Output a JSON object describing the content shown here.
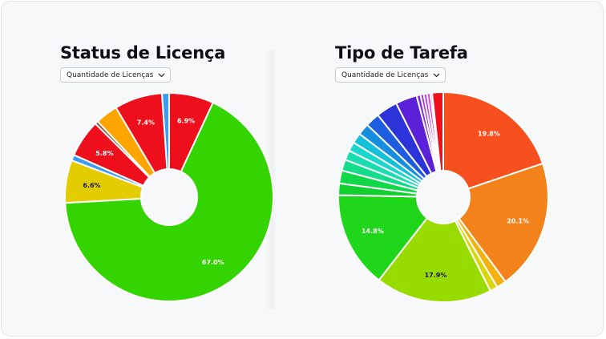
{
  "colors": {
    "background": "#f7f8fa",
    "title": "#0d0f14"
  },
  "panels": [
    {
      "title": "Status de Licença",
      "dropdown": {
        "selected": "Quantidade de Licenças",
        "icon": "chevron-down-icon"
      }
    },
    {
      "title": "Tipo de Tarefa",
      "dropdown": {
        "selected": "Quantidade de Licenças",
        "icon": "chevron-down-icon"
      }
    }
  ],
  "chart_data": [
    {
      "type": "pie",
      "style": "donut",
      "title": "Status de Licença",
      "start": "top",
      "slices": [
        {
          "value": 6.9,
          "label": "6.9%",
          "color": "#ee0f1d"
        },
        {
          "value": 67.0,
          "label": "67.0%",
          "color": "#34d400"
        },
        {
          "value": 6.6,
          "label": "6.6%",
          "color": "#e3cd00"
        },
        {
          "value": 0.9,
          "label": "",
          "color": "#3b9cf1"
        },
        {
          "value": 5.8,
          "label": "5.8%",
          "color": "#ee0f1d"
        },
        {
          "value": 0.5,
          "label": "",
          "color": "#a0522d"
        },
        {
          "value": 3.5,
          "label": "",
          "color": "#ffa500"
        },
        {
          "value": 7.4,
          "label": "7.4%",
          "color": "#ee0f1d"
        },
        {
          "value": 1.1,
          "label": "",
          "color": "#3b9cf1"
        }
      ]
    },
    {
      "type": "pie",
      "style": "donut",
      "title": "Tipo de Tarefa",
      "start": "top",
      "slices": [
        {
          "value": 19.8,
          "label": "19.8%",
          "color": "#f84f1f"
        },
        {
          "value": 20.1,
          "label": "20.1%",
          "color": "#f4821a"
        },
        {
          "value": 1.5,
          "label": "",
          "color": "#f2b20f"
        },
        {
          "value": 1.2,
          "label": "",
          "color": "#dbd60b"
        },
        {
          "value": 17.9,
          "label": "17.9%",
          "color": "#98db00"
        },
        {
          "value": 14.8,
          "label": "14.8%",
          "color": "#1fd61a"
        },
        {
          "value": 1.8,
          "label": "",
          "color": "#12cf30"
        },
        {
          "value": 2.0,
          "label": "",
          "color": "#10d848"
        },
        {
          "value": 1.7,
          "label": "",
          "color": "#14dc8a"
        },
        {
          "value": 1.5,
          "label": "",
          "color": "#1bdcae"
        },
        {
          "value": 1.4,
          "label": "",
          "color": "#1ad6cc"
        },
        {
          "value": 1.6,
          "label": "",
          "color": "#14c0d8"
        },
        {
          "value": 1.8,
          "label": "",
          "color": "#168ee0"
        },
        {
          "value": 2.2,
          "label": "",
          "color": "#1f5de0"
        },
        {
          "value": 3.3,
          "label": "",
          "color": "#2c33d8"
        },
        {
          "value": 3.3,
          "label": "",
          "color": "#5a21d8"
        },
        {
          "value": 0.6,
          "label": "",
          "color": "#8a2be2"
        },
        {
          "value": 0.5,
          "label": "",
          "color": "#a52ee6"
        },
        {
          "value": 0.5,
          "label": "",
          "color": "#c235e8"
        },
        {
          "value": 0.5,
          "label": "",
          "color": "#dd3ae0"
        },
        {
          "value": 0.3,
          "label": "",
          "color": "#ec3ac8"
        },
        {
          "value": 1.7,
          "label": "",
          "color": "#ee0f1d"
        }
      ]
    }
  ]
}
